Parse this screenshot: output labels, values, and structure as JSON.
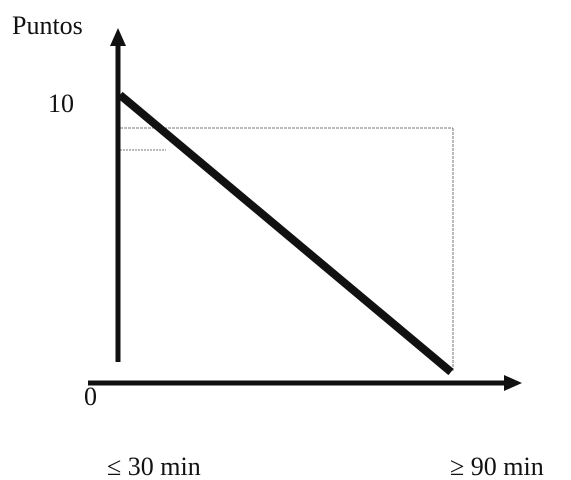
{
  "chart_data": {
    "type": "line",
    "ylabel": "Puntos",
    "y_tick": "10",
    "origin_label": "0",
    "x_labels": [
      "≤ 30 min",
      "≥ 90 min"
    ],
    "series": [
      {
        "x": [
          30,
          90
        ],
        "y": [
          8.5,
          0
        ]
      }
    ],
    "xlim": [
      30,
      90
    ],
    "ylim": [
      0,
      10
    ],
    "grid": false
  },
  "colors": {
    "line": "#111111",
    "axis": "#111111",
    "guide": "#777777"
  }
}
